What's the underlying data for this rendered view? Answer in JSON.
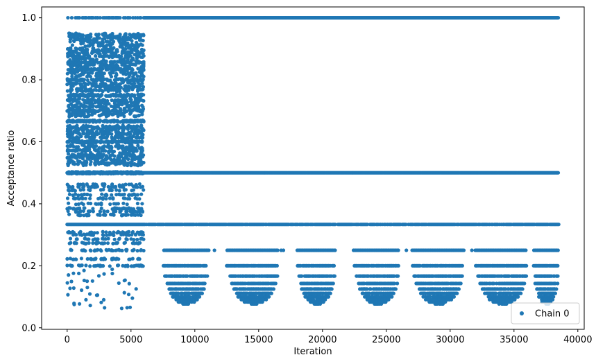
{
  "chart_data": {
    "type": "scatter",
    "title": "",
    "xlabel": "Iteration",
    "ylabel": "Acceptance ratio",
    "xlim": [
      -2000,
      40500
    ],
    "ylim": [
      -0.005,
      1.035
    ],
    "xticks": [
      0,
      5000,
      10000,
      15000,
      20000,
      25000,
      30000,
      35000,
      40000
    ],
    "xtick_labels": [
      "0",
      "5000",
      "10000",
      "15000",
      "20000",
      "25000",
      "30000",
      "35000",
      "40000"
    ],
    "yticks": [
      0.0,
      0.2,
      0.4,
      0.6,
      0.8,
      1.0
    ],
    "ytick_labels": [
      "0.0",
      "0.2",
      "0.4",
      "0.6",
      "0.8",
      "1.0"
    ],
    "grid": false,
    "legend_position": "lower-right",
    "series": [
      {
        "name": "Chain 0",
        "color": "#1f77b4",
        "marker": "circle",
        "x_range": [
          0,
          38500
        ],
        "bands": [
          {
            "y": 1.0,
            "x_from": 0,
            "x_to": 38500,
            "density": "continuous from ~6000"
          },
          {
            "y": 0.5,
            "x_from": 0,
            "x_to": 38500,
            "density": "continuous"
          },
          {
            "y": 0.333,
            "x_from": 0,
            "x_to": 38500,
            "density": "dense"
          },
          {
            "y": 0.25,
            "x_from": 0,
            "x_to": 38500,
            "density": "frequent"
          },
          {
            "y": 0.2,
            "x_from": 0,
            "x_to": 38500,
            "density": "clustered"
          }
        ],
        "early_phase": {
          "x_from": 0,
          "x_to": 6000,
          "y_from": 0.05,
          "y_to": 0.95,
          "description": "dense scatter across many ratio levels"
        },
        "dip_clusters_x": [
          [
            7500,
            11000
          ],
          [
            12500,
            16500
          ],
          [
            18000,
            21000
          ],
          [
            22500,
            26000
          ],
          [
            27000,
            31000
          ],
          [
            32000,
            36000
          ],
          [
            36500,
            38500
          ]
        ],
        "dip_levels": [
          0.2,
          0.1667,
          0.1429,
          0.125,
          0.1111,
          0.1,
          0.0909,
          0.0833,
          0.0769,
          0.0714,
          0.0667,
          0.05
        ]
      }
    ]
  }
}
